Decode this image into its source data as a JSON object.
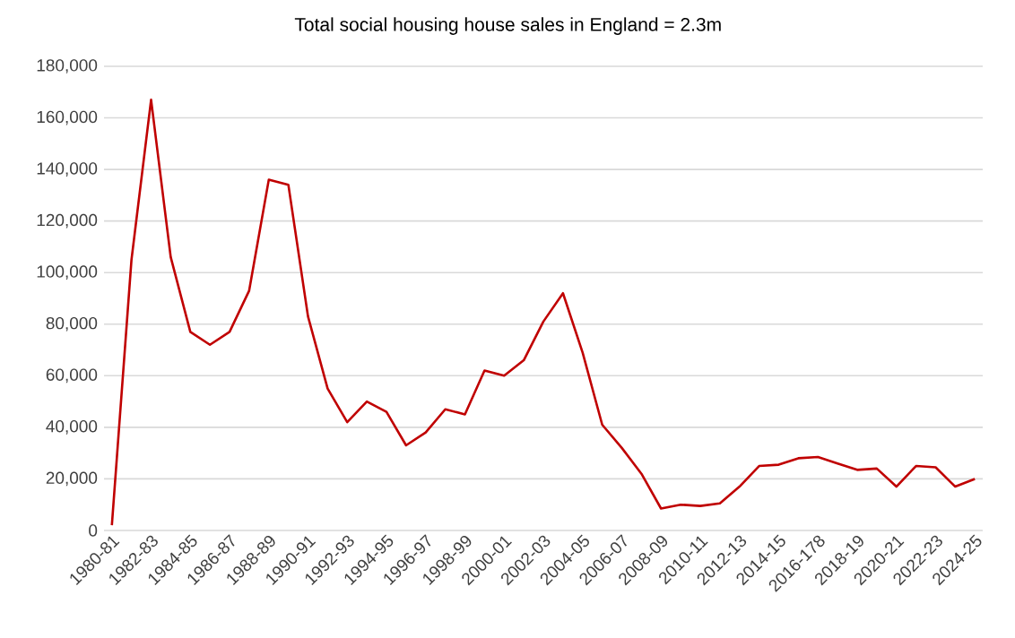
{
  "chart_data": {
    "type": "line",
    "title": "Total social housing house sales in England = 2.3m",
    "categories": [
      "1980-81",
      null,
      "1982-83",
      null,
      "1984-85",
      null,
      "1986-87",
      null,
      "1988-89",
      null,
      "1990-91",
      null,
      "1992-93",
      null,
      "1994-95",
      null,
      "1996-97",
      null,
      "1998-99",
      null,
      "2000-01",
      null,
      "2002-03",
      null,
      "2004-05",
      null,
      "2006-07",
      null,
      "2008-09",
      null,
      "2010-11",
      null,
      "2012-13",
      null,
      "2014-15",
      null,
      "2016-178",
      null,
      "2018-19",
      null,
      "2020-21",
      null,
      "2022-23",
      null,
      "2024-25"
    ],
    "values": [
      2000,
      105000,
      167000,
      106000,
      77000,
      72000,
      77000,
      93000,
      136000,
      134000,
      83000,
      55000,
      42000,
      50000,
      46000,
      33000,
      38000,
      47000,
      45000,
      62000,
      60000,
      66000,
      81000,
      92000,
      69000,
      41000,
      32000,
      22000,
      8500,
      10000,
      9500,
      10500,
      17000,
      25000,
      25500,
      28000,
      28500,
      26000,
      23500,
      24000,
      17000,
      25000,
      24500,
      17000,
      20000
    ],
    "color": "#c00000",
    "ylim": [
      0,
      180000
    ],
    "yticks": [
      0,
      {
        "value": 20000,
        "label": "20,000"
      },
      {
        "value": 40000,
        "label": "40,000"
      },
      {
        "value": 60000,
        "label": "60,000"
      },
      {
        "value": 80000,
        "label": "80,000"
      },
      {
        "value": 100000,
        "label": "100,000"
      },
      {
        "value": 120000,
        "label": "120,000"
      },
      {
        "value": 140000,
        "label": "140,000"
      },
      {
        "value": 160000,
        "label": "160,000"
      },
      {
        "value": 180000,
        "label": "180,000"
      }
    ],
    "grid": "y",
    "marker": "none",
    "line_style": "solid"
  }
}
